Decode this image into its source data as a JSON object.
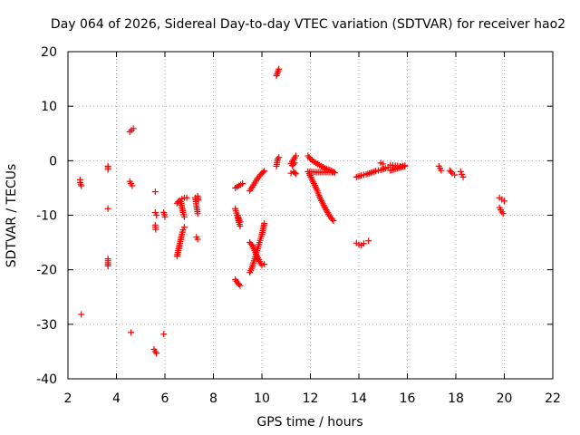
{
  "chart_data": {
    "type": "scatter",
    "title": "Day 064 of 2026, Sidereal Day-to-day VTEC variation (SDTVAR) for receiver hao2",
    "xlabel": "GPS time / hours",
    "ylabel": "SDTVAR / TECUs",
    "xlim": [
      2,
      22
    ],
    "ylim": [
      -40,
      20
    ],
    "xticks": [
      2,
      4,
      6,
      8,
      10,
      12,
      14,
      16,
      18,
      20,
      22
    ],
    "yticks": [
      -40,
      -30,
      -20,
      -10,
      0,
      10,
      20
    ],
    "xtick_labels": [
      "2",
      "4",
      "6",
      "8",
      "10",
      "12",
      "14",
      "16",
      "18",
      "20",
      "22"
    ],
    "ytick_labels": [
      "-40",
      "-30",
      "-20",
      "-10",
      "0",
      "10",
      "20"
    ],
    "grid": true,
    "marker": "+",
    "marker_color": "#ff0000",
    "series": [
      {
        "name": "SDTVAR",
        "segments": [
          [
            [
              2.5,
              -3.5
            ],
            [
              2.5,
              -4.0
            ],
            [
              2.55,
              -4.6
            ]
          ],
          [
            [
              2.55,
              -28.2
            ]
          ],
          [
            [
              3.65,
              -1.0
            ],
            [
              3.65,
              -1.6
            ]
          ],
          [
            [
              3.65,
              -8.8
            ]
          ],
          [
            [
              3.65,
              -18.0
            ],
            [
              3.65,
              -18.7
            ],
            [
              3.65,
              -19.3
            ]
          ],
          [
            [
              4.55,
              5.3
            ],
            [
              4.62,
              5.6
            ],
            [
              4.7,
              5.9
            ]
          ],
          [
            [
              4.55,
              -3.8
            ],
            [
              4.6,
              -4.2
            ],
            [
              4.65,
              -4.6
            ]
          ],
          [
            [
              4.6,
              -31.5
            ]
          ],
          [
            [
              5.6,
              -5.7
            ]
          ],
          [
            [
              5.6,
              -9.5
            ],
            [
              5.65,
              -10.0
            ]
          ],
          [
            [
              5.6,
              -11.8
            ],
            [
              5.62,
              -12.6
            ]
          ],
          [
            [
              5.95,
              -9.5
            ],
            [
              6.0,
              -10.3
            ]
          ],
          [
            [
              5.55,
              -34.6
            ],
            [
              5.6,
              -35.0
            ],
            [
              5.65,
              -35.3
            ]
          ],
          [
            [
              5.95,
              -31.8
            ]
          ],
          [
            [
              6.5,
              -7.8
            ],
            [
              6.6,
              -7.3
            ],
            [
              6.7,
              -7.0
            ],
            [
              6.8,
              -6.8
            ],
            [
              6.9,
              -6.8
            ]
          ],
          [
            [
              6.65,
              -7.5
            ],
            [
              6.7,
              -8.5
            ],
            [
              6.75,
              -9.5
            ],
            [
              6.8,
              -10.3
            ]
          ],
          [
            [
              6.5,
              -17.5
            ],
            [
              6.55,
              -16.5
            ],
            [
              6.6,
              -15.5
            ],
            [
              6.65,
              -14.5
            ],
            [
              6.7,
              -13.5
            ],
            [
              6.75,
              -12.7
            ],
            [
              6.8,
              -12.2
            ]
          ],
          [
            [
              7.25,
              -6.8
            ],
            [
              7.28,
              -7.5
            ],
            [
              7.3,
              -8.3
            ],
            [
              7.33,
              -9.0
            ],
            [
              7.35,
              -9.7
            ]
          ],
          [
            [
              7.35,
              -6.5
            ],
            [
              7.38,
              -7.2
            ]
          ],
          [
            [
              7.3,
              -14.0
            ],
            [
              7.35,
              -14.4
            ]
          ],
          [
            [
              8.9,
              -8.8
            ],
            [
              8.95,
              -9.6
            ],
            [
              9.0,
              -10.4
            ],
            [
              9.05,
              -11.3
            ],
            [
              9.1,
              -12.0
            ]
          ],
          [
            [
              9.0,
              -10.0
            ],
            [
              9.05,
              -10.6
            ],
            [
              9.1,
              -11.2
            ]
          ],
          [
            [
              8.9,
              -5.0
            ],
            [
              9.05,
              -4.6
            ],
            [
              9.2,
              -4.2
            ]
          ],
          [
            [
              8.9,
              -21.8
            ],
            [
              9.0,
              -22.4
            ],
            [
              9.1,
              -22.9
            ]
          ],
          [
            [
              9.5,
              -5.5
            ],
            [
              9.6,
              -4.8
            ],
            [
              9.7,
              -4.1
            ],
            [
              9.8,
              -3.4
            ],
            [
              9.9,
              -2.8
            ],
            [
              10.0,
              -2.3
            ],
            [
              10.1,
              -1.9
            ]
          ],
          [
            [
              9.5,
              -15.0
            ],
            [
              9.6,
              -15.5
            ],
            [
              9.7,
              -16.5
            ],
            [
              9.8,
              -17.5
            ],
            [
              9.9,
              -18.5
            ],
            [
              10.0,
              -19.2
            ],
            [
              10.1,
              -19.0
            ]
          ],
          [
            [
              9.5,
              -20.5
            ],
            [
              9.6,
              -19.5
            ],
            [
              9.7,
              -18.0
            ],
            [
              9.8,
              -16.5
            ],
            [
              9.9,
              -15.0
            ],
            [
              10.0,
              -13.5
            ],
            [
              10.05,
              -12.5
            ],
            [
              10.1,
              -11.5
            ]
          ],
          [
            [
              10.6,
              -1.0
            ],
            [
              10.65,
              0.3
            ],
            [
              10.7,
              0.6
            ]
          ],
          [
            [
              10.6,
              15.6
            ],
            [
              10.65,
              16.2
            ],
            [
              10.7,
              16.8
            ]
          ],
          [
            [
              11.2,
              -2.3
            ],
            [
              11.3,
              -2.0
            ],
            [
              11.4,
              -2.4
            ]
          ],
          [
            [
              11.2,
              -0.5
            ],
            [
              11.3,
              0.2
            ],
            [
              11.4,
              0.9
            ]
          ],
          [
            [
              11.25,
              -0.9
            ],
            [
              11.35,
              -0.4
            ]
          ],
          [
            [
              11.9,
              0.9
            ],
            [
              12.0,
              0.3
            ],
            [
              12.15,
              -0.2
            ],
            [
              12.3,
              -0.6
            ],
            [
              12.45,
              -1.0
            ],
            [
              12.6,
              -1.4
            ],
            [
              12.8,
              -1.7
            ],
            [
              12.95,
              -2.0
            ]
          ],
          [
            [
              11.9,
              -2.0
            ],
            [
              12.2,
              -2.1
            ],
            [
              12.5,
              -2.1
            ],
            [
              12.8,
              -2.1
            ],
            [
              13.0,
              -2.2
            ]
          ],
          [
            [
              11.95,
              -2.4
            ],
            [
              12.05,
              -3.3
            ],
            [
              12.15,
              -4.2
            ],
            [
              12.25,
              -5.2
            ],
            [
              12.35,
              -6.3
            ],
            [
              12.45,
              -7.3
            ],
            [
              12.55,
              -8.2
            ],
            [
              12.65,
              -9.0
            ],
            [
              12.75,
              -9.8
            ],
            [
              12.85,
              -10.5
            ],
            [
              12.95,
              -11.0
            ]
          ],
          [
            [
              13.9,
              -3.0
            ],
            [
              14.1,
              -2.7
            ],
            [
              14.3,
              -2.5
            ],
            [
              14.5,
              -2.2
            ],
            [
              14.7,
              -1.9
            ],
            [
              14.9,
              -1.7
            ],
            [
              15.1,
              -1.4
            ],
            [
              15.2,
              -1.2
            ]
          ],
          [
            [
              13.9,
              -15.1
            ],
            [
              14.0,
              -15.4
            ],
            [
              14.1,
              -15.5
            ],
            [
              14.2,
              -15.2
            ]
          ],
          [
            [
              14.4,
              -14.7
            ]
          ],
          [
            [
              14.9,
              -0.4
            ],
            [
              15.0,
              -0.6
            ]
          ],
          [
            [
              15.3,
              -1.8
            ],
            [
              15.45,
              -1.6
            ],
            [
              15.6,
              -1.4
            ],
            [
              15.75,
              -1.2
            ],
            [
              15.9,
              -1.0
            ]
          ],
          [
            [
              15.3,
              -0.8
            ],
            [
              15.5,
              -0.9
            ],
            [
              15.7,
              -1.0
            ],
            [
              15.9,
              -0.9
            ]
          ],
          [
            [
              17.3,
              -1.0
            ],
            [
              17.35,
              -1.4
            ],
            [
              17.4,
              -1.8
            ]
          ],
          [
            [
              17.75,
              -1.8
            ],
            [
              17.85,
              -2.3
            ],
            [
              17.95,
              -2.6
            ]
          ],
          [
            [
              18.2,
              -2.0
            ],
            [
              18.25,
              -2.5
            ],
            [
              18.3,
              -3.0
            ]
          ],
          [
            [
              19.8,
              -6.8
            ],
            [
              19.9,
              -7.1
            ],
            [
              20.0,
              -7.4
            ]
          ],
          [
            [
              19.8,
              -8.6
            ],
            [
              19.85,
              -9.0
            ],
            [
              19.9,
              -9.4
            ],
            [
              19.95,
              -9.7
            ]
          ]
        ]
      }
    ]
  }
}
